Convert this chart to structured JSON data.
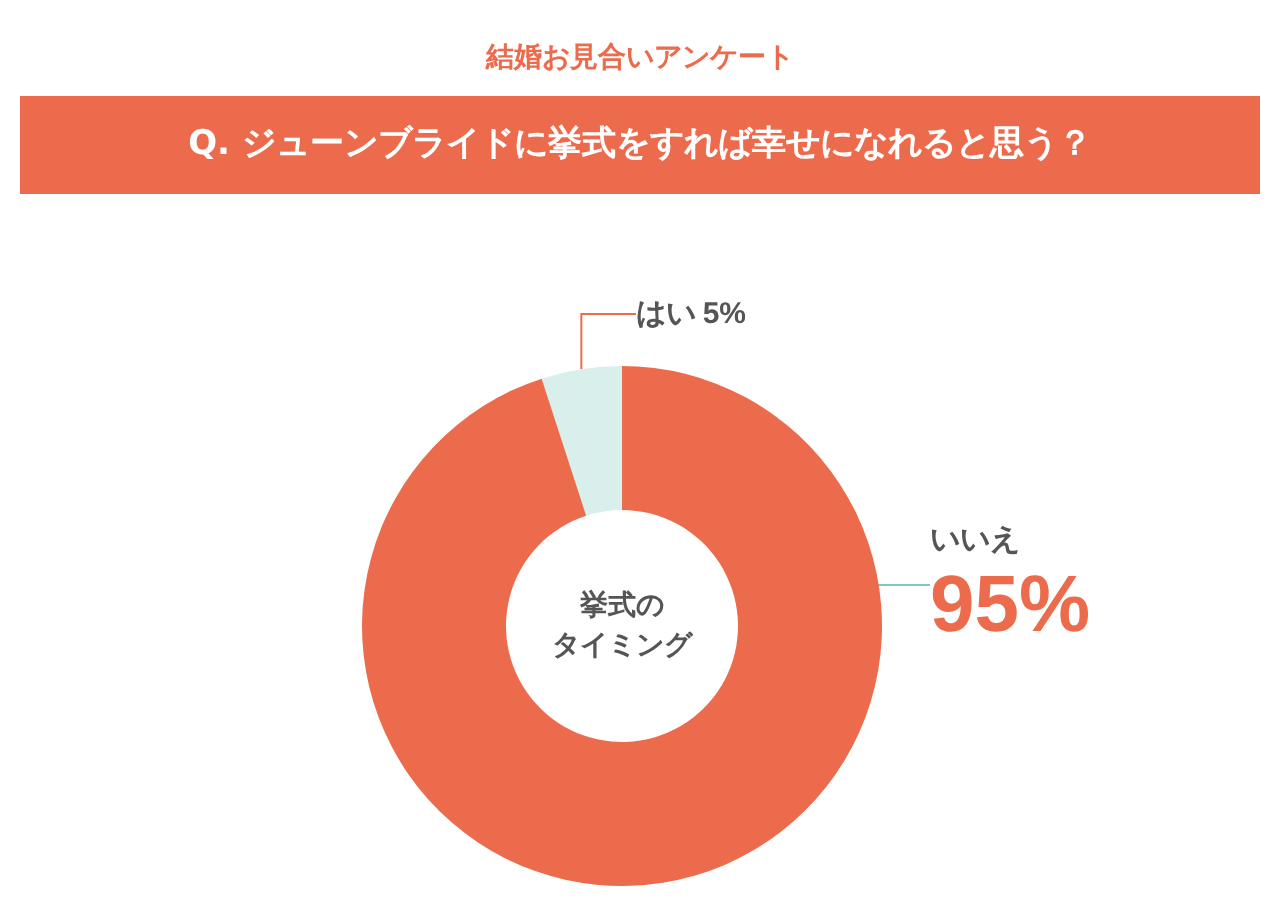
{
  "chart_data": {
    "type": "donut",
    "title": "結婚お見合いアンケート",
    "subtitle": "Q. ジューンブライドに挙式をすれば幸せになれると思う？",
    "categories": [
      "はい",
      "いいえ"
    ],
    "values": [
      5,
      95
    ],
    "value_labels": [
      "5%",
      "95%"
    ],
    "colors": [
      "#d9efec",
      "#ec6b4c"
    ],
    "annotations": [
      "挙式の",
      "タイミング"
    ],
    "legend": false
  }
}
